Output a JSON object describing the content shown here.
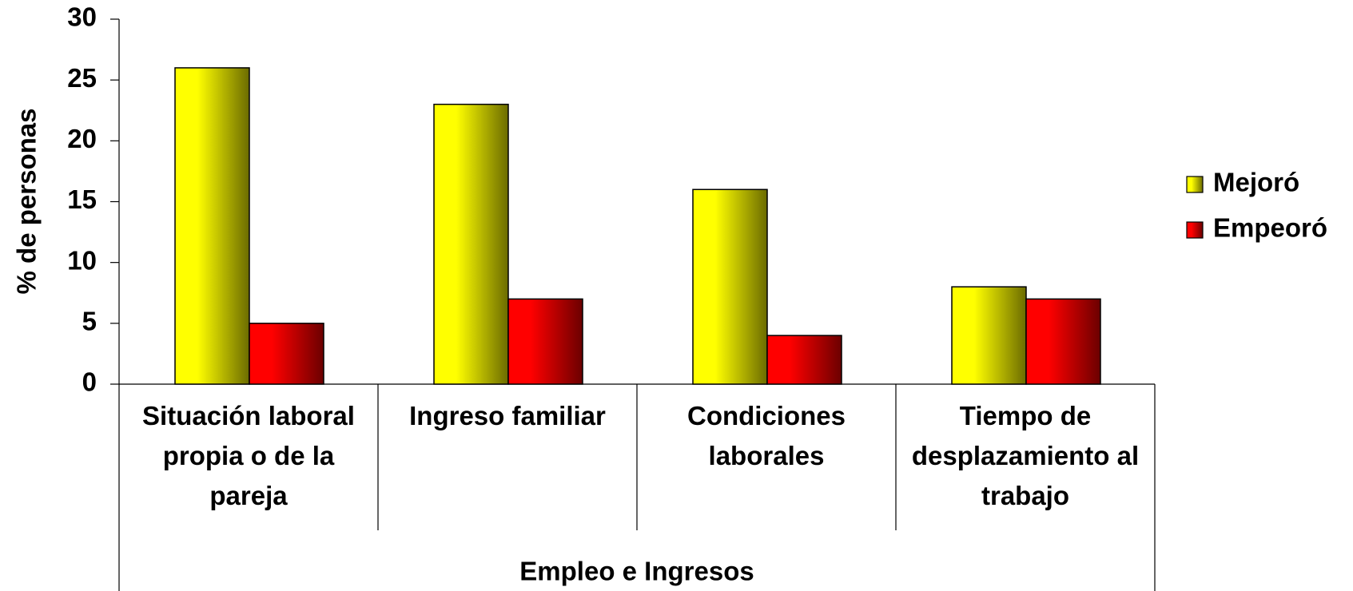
{
  "chart_data": {
    "type": "bar",
    "y_label": "% de personas",
    "group_label": "Empleo e Ingresos",
    "categories": [
      "Situación laboral propia o de la pareja",
      "Ingreso familiar",
      "Condiciones laborales",
      "Tiempo de desplazamiento al trabajo"
    ],
    "series": [
      {
        "name": "Mejoró",
        "color": "#ffff00",
        "values": [
          26,
          23,
          16,
          8
        ]
      },
      {
        "name": "Empeoró",
        "color": "#ff0000",
        "values": [
          5,
          7,
          4,
          7
        ]
      }
    ],
    "ylim": [
      0,
      30
    ],
    "yticks": [
      0,
      5,
      10,
      15,
      20,
      25,
      30
    ],
    "legend": "right"
  }
}
